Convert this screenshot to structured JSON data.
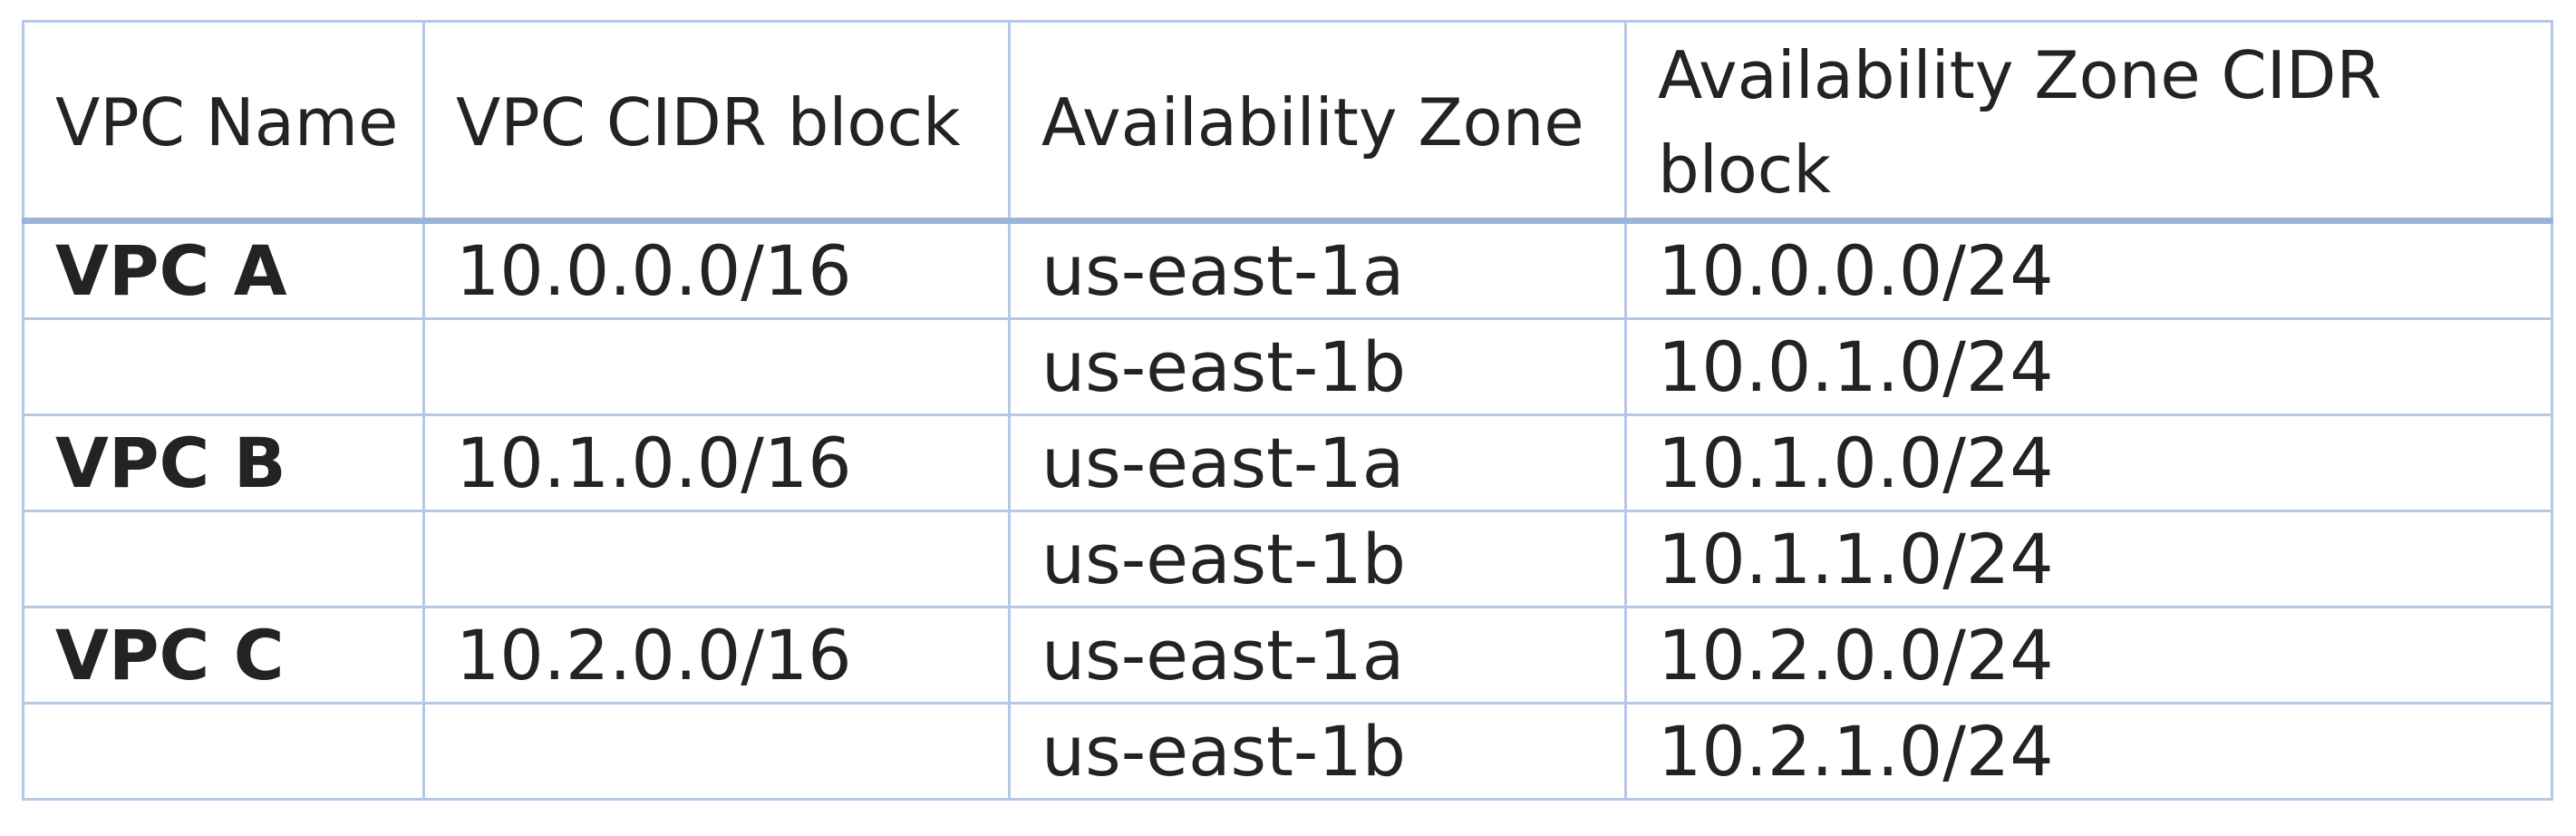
{
  "table": {
    "headers": [
      "VPC Name",
      "VPC CIDR block",
      "Availability Zone",
      "Availability Zone CIDR block"
    ],
    "rows": [
      [
        "VPC A",
        "10.0.0.0/16",
        "us-east-1a",
        "10.0.0.0/24"
      ],
      [
        "",
        "",
        "us-east-1b",
        "10.0.1.0/24"
      ],
      [
        "VPC B",
        "10.1.0.0/16",
        "us-east-1a",
        "10.1.0.0/24"
      ],
      [
        "",
        "",
        "us-east-1b",
        "10.1.1.0/24"
      ],
      [
        "VPC C",
        "10.2.0.0/16",
        "us-east-1a",
        "10.2.0.0/24"
      ],
      [
        "",
        "",
        "us-east-1b",
        "10.2.1.0/24"
      ]
    ]
  },
  "colors": {
    "border": "#b7c7e6",
    "header_rule": "#9db3dc",
    "text": "#232323"
  }
}
